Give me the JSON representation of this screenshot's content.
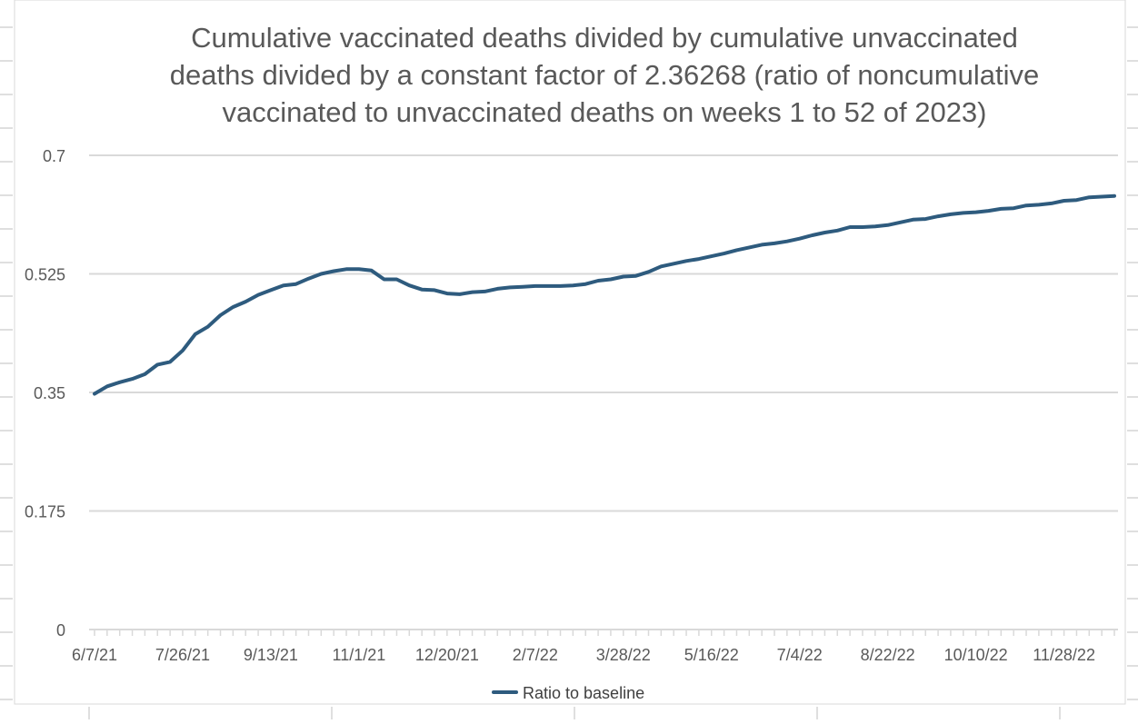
{
  "colors": {
    "series": "#2e5b7e",
    "grid": "#d9d9d9",
    "axis": "#d9d9d9",
    "text": "#595959",
    "sheet_grid": "#bfbfbf"
  },
  "chart_data": {
    "type": "line",
    "title_lines": [
      "Cumulative vaccinated deaths divided by cumulative unvaccinated",
      "deaths divided by a constant factor of 2.36268 (ratio of noncumulative",
      "vaccinated to unvaccinated deaths on weeks 1 to 52 of 2023)"
    ],
    "xlabel": "",
    "ylabel": "",
    "ylim": [
      0,
      0.7
    ],
    "yticks": [
      "0",
      "0.175",
      "0.35",
      "0.525",
      "0.7"
    ],
    "yticks_values": [
      0,
      0.175,
      0.35,
      0.525,
      0.7
    ],
    "x_tick_labels": [
      "6/7/21",
      "7/26/21",
      "9/13/21",
      "11/1/21",
      "12/20/21",
      "2/7/22",
      "3/28/22",
      "5/16/22",
      "7/4/22",
      "8/22/22",
      "10/10/22",
      "11/28/22"
    ],
    "x_start": "2021-06-07",
    "x_step_days": 7,
    "grid": true,
    "legend_position": "bottom",
    "series": [
      {
        "name": "Ratio to baseline",
        "values": [
          0.348,
          0.359,
          0.365,
          0.37,
          0.377,
          0.391,
          0.395,
          0.412,
          0.436,
          0.447,
          0.464,
          0.476,
          0.484,
          0.494,
          0.501,
          0.508,
          0.51,
          0.518,
          0.525,
          0.529,
          0.532,
          0.532,
          0.53,
          0.517,
          0.517,
          0.508,
          0.502,
          0.501,
          0.496,
          0.495,
          0.498,
          0.499,
          0.503,
          0.505,
          0.506,
          0.507,
          0.507,
          0.507,
          0.508,
          0.51,
          0.515,
          0.517,
          0.521,
          0.522,
          0.528,
          0.536,
          0.54,
          0.544,
          0.547,
          0.551,
          0.555,
          0.56,
          0.564,
          0.568,
          0.57,
          0.573,
          0.577,
          0.582,
          0.586,
          0.589,
          0.594,
          0.594,
          0.595,
          0.597,
          0.601,
          0.605,
          0.606,
          0.61,
          0.613,
          0.615,
          0.616,
          0.618,
          0.621,
          0.622,
          0.626,
          0.627,
          0.629,
          0.633,
          0.634,
          0.638,
          0.639,
          0.64
        ]
      }
    ]
  }
}
